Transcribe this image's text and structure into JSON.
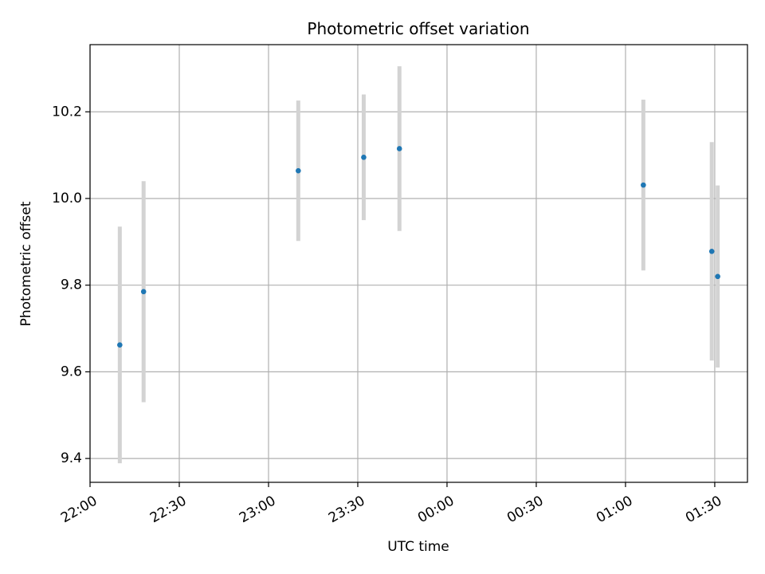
{
  "chart_data": {
    "type": "scatter",
    "title": "Photometric offset variation",
    "xlabel": "UTC time",
    "ylabel": "Photometric offset",
    "grid": true,
    "xlim": [
      "22:00",
      "01:41"
    ],
    "ylim": [
      9.345,
      10.355
    ],
    "x_ticks": [
      "22:00",
      "22:30",
      "23:00",
      "23:30",
      "00:00",
      "00:30",
      "01:00",
      "01:30"
    ],
    "y_ticks": [
      9.4,
      9.6,
      9.8,
      10.0,
      10.2
    ],
    "point_color": "#1f77b4",
    "errorbar_color": "#d3d3d3",
    "points": [
      {
        "x": "22:10",
        "y": 9.662,
        "err": 0.273
      },
      {
        "x": "22:18",
        "y": 9.785,
        "err": 0.255
      },
      {
        "x": "23:10",
        "y": 10.064,
        "err": 0.162
      },
      {
        "x": "23:32",
        "y": 10.095,
        "err": 0.145
      },
      {
        "x": "23:44",
        "y": 10.115,
        "err": 0.19
      },
      {
        "x": "01:06",
        "y": 10.031,
        "err": 0.197
      },
      {
        "x": "01:29",
        "y": 9.878,
        "err": 0.252
      },
      {
        "x": "01:31",
        "y": 9.82,
        "err": 0.21
      }
    ]
  }
}
